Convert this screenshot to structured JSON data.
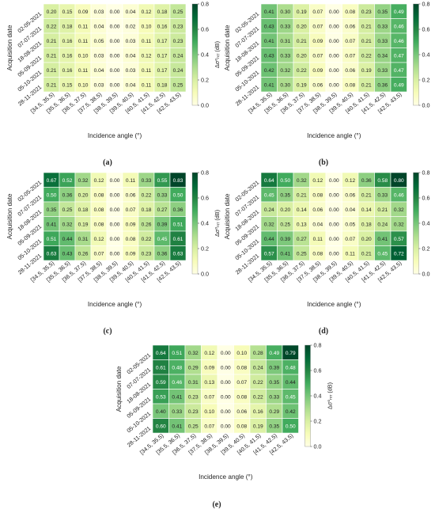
{
  "figure": {
    "colors": {
      "low": "#ffffe5",
      "mid": "#a6db9f",
      "high": "#00441b",
      "cell_border": "#ffffff",
      "text_light": "#ffffff",
      "text_dark": "#222222"
    }
  },
  "chart_data": [
    {
      "type": "heatmap",
      "panel": "(a)",
      "rows": [
        "02-05-2021",
        "07-07-2021",
        "18-08-2021",
        "05-09-2021",
        "05-10-2021",
        "28-11-2021"
      ],
      "columns": [
        "[34.5, 35.5)",
        "[35.5, 36.5)",
        "[36.5, 37.5)",
        "[37.5, 38.5)",
        "[38.5, 39.5)",
        "[39.5, 40.5)",
        "[40.5, 41.5)",
        "[41.5, 42.5)",
        "[42.5, 43.5)"
      ],
      "values": [
        [
          "0.20",
          "0.15",
          "0.09",
          "0.03",
          "0.00",
          "0.04",
          "0.12",
          "0.18",
          "0.25"
        ],
        [
          "0.22",
          "0.18",
          "0.11",
          "0.04",
          "0.00",
          "0.02",
          "0.10",
          "0.16",
          "0.23"
        ],
        [
          "0.21",
          "0.16",
          "0.11",
          "0.05",
          "0.00",
          "0.03",
          "0.11",
          "0.17",
          "0.23"
        ],
        [
          "0.21",
          "0.16",
          "0.10",
          "0.03",
          "0.00",
          "0.04",
          "0.12",
          "0.17",
          "0.24"
        ],
        [
          "0.21",
          "0.16",
          "0.11",
          "0.04",
          "0.00",
          "0.03",
          "0.11",
          "0.17",
          "0.24"
        ],
        [
          "0.21",
          "0.15",
          "0.10",
          "0.03",
          "0.00",
          "0.04",
          "0.11",
          "0.18",
          "0.25"
        ]
      ],
      "ylabel": "Acquisition date",
      "xlabel": "Incidence angle (°)",
      "colorbar": {
        "label": "Δσ⁰ₙᵣᵣ (dB)",
        "ticks": [
          "0.0",
          "0.2",
          "0.4",
          "0.6",
          "0.8"
        ],
        "range": [
          0,
          0.8
        ]
      }
    },
    {
      "type": "heatmap",
      "panel": "(b)",
      "rows": [
        "02-05-2021",
        "07-07-2021",
        "18-08-2021",
        "05-09-2021",
        "05-10-2021",
        "28-11-2021"
      ],
      "columns": [
        "[34.5, 35.5)",
        "[35.5, 36.5)",
        "[36.5, 37.5)",
        "[37.5, 38.5)",
        "[38.5, 39.5)",
        "[39.5, 40.5)",
        "[40.5, 41.5)",
        "[41.5, 42.5)",
        "[42.5, 43.5)"
      ],
      "values": [
        [
          "0.41",
          "0.30",
          "0.19",
          "0.07",
          "0.00",
          "0.08",
          "0.23",
          "0.35",
          "0.49"
        ],
        [
          "0.43",
          "0.33",
          "0.20",
          "0.07",
          "0.00",
          "0.06",
          "0.21",
          "0.33",
          "0.46"
        ],
        [
          "0.41",
          "0.31",
          "0.21",
          "0.09",
          "0.00",
          "0.07",
          "0.21",
          "0.33",
          "0.46"
        ],
        [
          "0.43",
          "0.33",
          "0.20",
          "0.07",
          "0.00",
          "0.07",
          "0.22",
          "0.34",
          "0.47"
        ],
        [
          "0.42",
          "0.32",
          "0.22",
          "0.09",
          "0.00",
          "0.06",
          "0.19",
          "0.33",
          "0.47"
        ],
        [
          "0.41",
          "0.30",
          "0.19",
          "0.06",
          "0.00",
          "0.08",
          "0.21",
          "0.36",
          "0.49"
        ]
      ],
      "ylabel": "Acquisition date",
      "xlabel": "Incidence angle (°)",
      "colorbar": {
        "label": "Δσ⁰ₙᵣᵣ (dB)",
        "ticks": [
          "0.0",
          "0.2",
          "0.4",
          "0.6",
          "0.8"
        ],
        "range": [
          0,
          0.8
        ]
      }
    },
    {
      "type": "heatmap",
      "panel": "(c)",
      "rows": [
        "02-05-2021",
        "07-07-2021",
        "18-08-2021",
        "05-09-2021",
        "05-10-2021",
        "28-11-2021"
      ],
      "columns": [
        "[34.5, 35.5)",
        "[35.5, 36.5)",
        "[36.5, 37.5)",
        "[37.5, 38.5)",
        "[38.5, 39.5)",
        "[39.5, 40.5)",
        "[40.5, 41.5)",
        "[41.5, 42.5)",
        "[42.5, 43.5)"
      ],
      "values": [
        [
          "0.67",
          "0.52",
          "0.32",
          "0.12",
          "0.00",
          "0.11",
          "0.33",
          "0.55",
          "0.83"
        ],
        [
          "0.50",
          "0.36",
          "0.20",
          "0.08",
          "0.00",
          "0.06",
          "0.22",
          "0.33",
          "0.50"
        ],
        [
          "0.35",
          "0.25",
          "0.18",
          "0.08",
          "0.00",
          "0.07",
          "0.18",
          "0.27",
          "0.36"
        ],
        [
          "0.41",
          "0.32",
          "0.19",
          "0.08",
          "0.00",
          "0.09",
          "0.26",
          "0.39",
          "0.51"
        ],
        [
          "0.51",
          "0.44",
          "0.31",
          "0.12",
          "0.00",
          "0.08",
          "0.22",
          "0.45",
          "0.61"
        ],
        [
          "0.63",
          "0.43",
          "0.26",
          "0.07",
          "0.00",
          "0.09",
          "0.23",
          "0.36",
          "0.63"
        ]
      ],
      "ylabel": "Acquisition date",
      "xlabel": "Incidence angle (°)",
      "colorbar": {
        "label": "Δσ⁰ₙᵣᵣ (dB)",
        "ticks": [
          "0.0",
          "0.2",
          "0.4",
          "0.6",
          "0.8"
        ],
        "range": [
          0,
          0.8
        ]
      }
    },
    {
      "type": "heatmap",
      "panel": "(d)",
      "rows": [
        "02-05-2021",
        "07-07-2021",
        "18-08-2021",
        "05-09-2021",
        "05-10-2021",
        "28-11-2021"
      ],
      "columns": [
        "[34.5, 35.5)",
        "[35.5, 36.5)",
        "[36.5, 37.5)",
        "[37.5, 38.5)",
        "[38.5, 39.5)",
        "[39.5, 40.5)",
        "[40.5, 41.5)",
        "[41.5, 42.5)",
        "[42.5, 43.5)"
      ],
      "values": [
        [
          "0.64",
          "0.50",
          "0.32",
          "0.12",
          "0.00",
          "0.12",
          "0.36",
          "0.58",
          "0.80"
        ],
        [
          "0.45",
          "0.35",
          "0.21",
          "0.08",
          "0.00",
          "0.06",
          "0.21",
          "0.33",
          "0.46"
        ],
        [
          "0.24",
          "0.20",
          "0.14",
          "0.06",
          "0.00",
          "0.04",
          "0.14",
          "0.21",
          "0.32"
        ],
        [
          "0.32",
          "0.25",
          "0.13",
          "0.04",
          "0.00",
          "0.05",
          "0.18",
          "0.24",
          "0.32"
        ],
        [
          "0.44",
          "0.39",
          "0.27",
          "0.11",
          "0.00",
          "0.07",
          "0.20",
          "0.41",
          "0.57"
        ],
        [
          "0.57",
          "0.41",
          "0.25",
          "0.08",
          "0.00",
          "0.11",
          "0.21",
          "0.45",
          "0.72"
        ]
      ],
      "ylabel": "Acquisition date",
      "xlabel": "Incidence angle (°)",
      "colorbar": {
        "label": "Δσ⁰ₙᵣᵣ (dB)",
        "ticks": [
          "0.0",
          "0.2",
          "0.4",
          "0.6",
          "0.8"
        ],
        "range": [
          0,
          0.8
        ]
      }
    },
    {
      "type": "heatmap",
      "panel": "(e)",
      "rows": [
        "02-05-2021",
        "07-07-2021",
        "18-08-2021",
        "05-09-2021",
        "05-10-2021",
        "28-11-2021"
      ],
      "columns": [
        "[34.5, 35.5)",
        "[35.5, 36.5)",
        "[36.5, 37.5)",
        "[37.5, 38.5)",
        "[38.5, 39.5)",
        "[39.5, 40.5)",
        "[40.5, 41.5)",
        "[41.5, 42.5)",
        "[42.5, 43.5)"
      ],
      "values": [
        [
          "0.64",
          "0.51",
          "0.32",
          "0.12",
          "0.00",
          "0.10",
          "0.28",
          "0.49",
          "0.79"
        ],
        [
          "0.61",
          "0.48",
          "0.29",
          "0.09",
          "0.00",
          "0.08",
          "0.24",
          "0.39",
          "0.48"
        ],
        [
          "0.59",
          "0.46",
          "0.31",
          "0.13",
          "0.00",
          "0.07",
          "0.22",
          "0.35",
          "0.44"
        ],
        [
          "0.53",
          "0.41",
          "0.23",
          "0.07",
          "0.00",
          "0.08",
          "0.22",
          "0.33",
          "0.45"
        ],
        [
          "0.40",
          "0.33",
          "0.23",
          "0.10",
          "0.00",
          "0.06",
          "0.16",
          "0.29",
          "0.42"
        ],
        [
          "0.60",
          "0.41",
          "0.25",
          "0.07",
          "0.00",
          "0.08",
          "0.19",
          "0.35",
          "0.50"
        ]
      ],
      "ylabel": "Acquisition date",
      "xlabel": "Incidence angle (°)",
      "colorbar": {
        "label": "Δσ⁰ₙᵣᵣ (dB)",
        "ticks": [
          "0.0",
          "0.2",
          "0.4",
          "0.6",
          "0.8"
        ],
        "range": [
          0,
          0.8
        ]
      }
    }
  ]
}
